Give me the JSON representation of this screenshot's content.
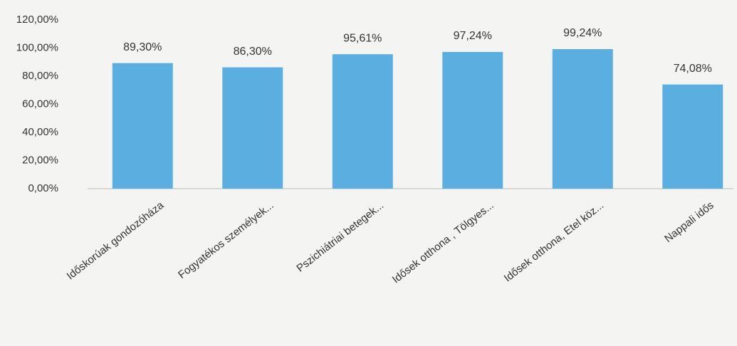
{
  "chart_data": {
    "type": "bar",
    "categories": [
      "Időskorúak gondozóháza",
      "Fogyatékos személyek...",
      "Pszichiátriai betegek...",
      "Idősek otthona , Tölgyes...",
      "Idősek otthona,  Etel köz...",
      "Nappali idős"
    ],
    "values": [
      89.3,
      86.3,
      95.61,
      97.24,
      99.24,
      74.08
    ],
    "value_labels": [
      "89,30%",
      "86,30%",
      "95,61%",
      "97,24%",
      "99,24%",
      "74,08%"
    ],
    "color": "#5aafe0",
    "ylim": [
      0,
      120
    ],
    "yticks": [
      {
        "value": 0,
        "label": "0,00%"
      },
      {
        "value": 20,
        "label": "20,00%"
      },
      {
        "value": 40,
        "label": "40,00%"
      },
      {
        "value": 60,
        "label": "60,00%"
      },
      {
        "value": 80,
        "label": "80,00%"
      },
      {
        "value": 100,
        "label": "100,00%"
      },
      {
        "value": 120,
        "label": "120,00%"
      }
    ]
  }
}
